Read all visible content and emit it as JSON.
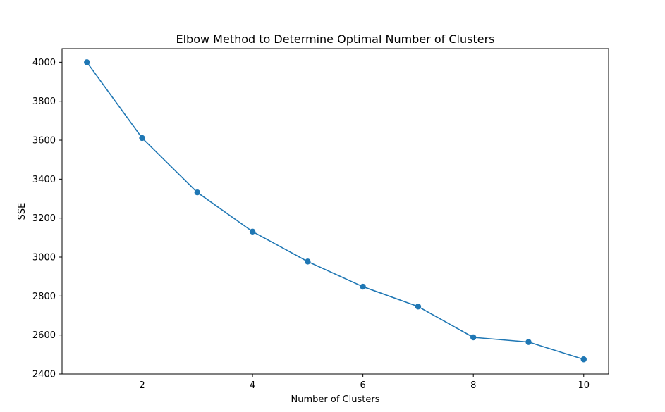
{
  "chart_data": {
    "type": "line",
    "title": "Elbow Method to Determine Optimal Number of Clusters",
    "xlabel": "Number of Clusters",
    "ylabel": "SSE",
    "xlim": [
      0.55,
      10.45
    ],
    "ylim": [
      2400,
      4070
    ],
    "xticks": [
      2,
      4,
      6,
      8,
      10
    ],
    "yticks": [
      2400,
      2600,
      2800,
      3000,
      3200,
      3400,
      3600,
      3800,
      4000
    ],
    "grid": false,
    "series": [
      {
        "color": "#1f77b4",
        "marker": "circle",
        "x": [
          1,
          2,
          3,
          4,
          5,
          6,
          7,
          8,
          9,
          10
        ],
        "y": [
          4000,
          3611,
          3332,
          3131,
          2977,
          2848,
          2746,
          2588,
          2564,
          2475
        ]
      }
    ]
  }
}
